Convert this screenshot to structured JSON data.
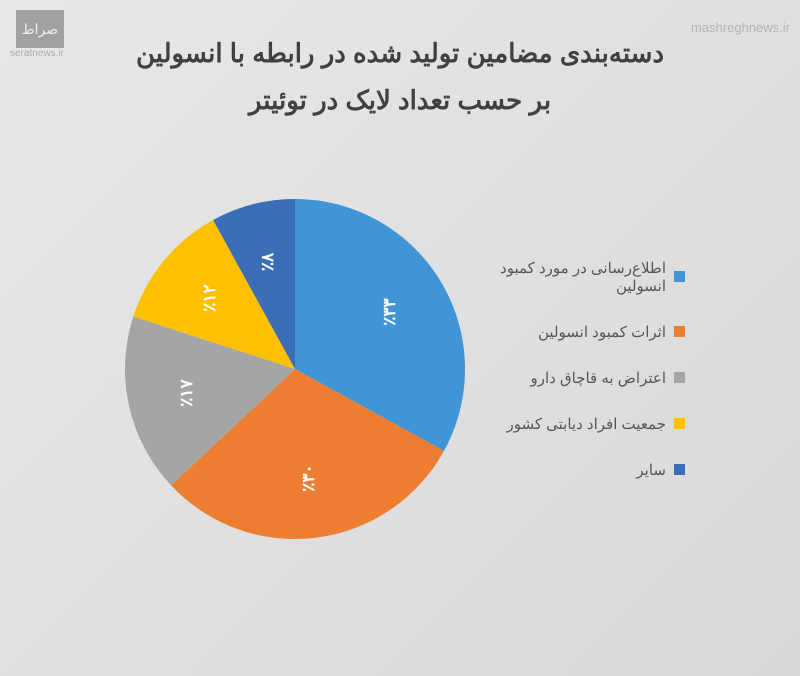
{
  "title_line1": "دسته‌بندی مضامین تولید شده در رابطه با انسولین",
  "title_line2": "بر حسب تعداد لایک در توئیتر",
  "watermark_left_text": "seratnews.ir",
  "watermark_left_logo": "صراط",
  "watermark_right_text": "mashreghnews.ir",
  "chart": {
    "type": "pie",
    "background_color": "#e4e4e4",
    "title_fontsize": 26,
    "title_color": "#404040",
    "label_fontsize": 17,
    "label_color": "#ffffff",
    "legend_fontsize": 15,
    "legend_color": "#555555",
    "start_angle_deg": -90,
    "slices": [
      {
        "label": "اطلاع‌رسانی در مورد کمبود انسولین",
        "value": 33,
        "display": "٪۳۳",
        "color": "#3f95d5"
      },
      {
        "label": "اثرات کمبود انسولین",
        "value": 30,
        "display": "٪۳۰",
        "color": "#ed7d31"
      },
      {
        "label": "اعتراض به قاچاق دارو",
        "value": 17,
        "display": "٪۱۷",
        "color": "#a5a5a5"
      },
      {
        "label": "جمعیت افراد دیابتی کشور",
        "value": 12,
        "display": "٪۱۲",
        "color": "#ffc002"
      },
      {
        "label": "سایر",
        "value": 8,
        "display": "٪۸",
        "color": "#3a6fb7"
      }
    ]
  }
}
